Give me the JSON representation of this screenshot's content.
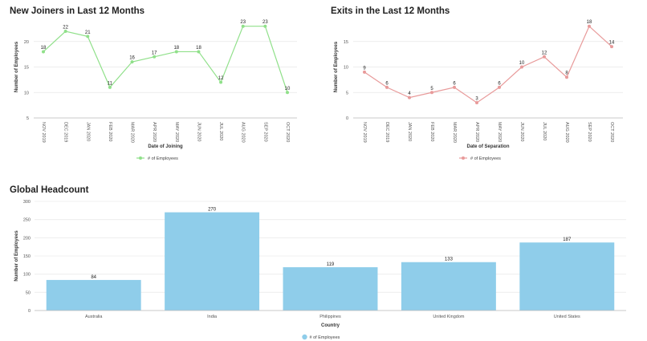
{
  "charts": {
    "joiners": {
      "title": "New Joiners in Last 12 Months",
      "color": "#90e08a",
      "chart_data": {
        "type": "line",
        "title": "New Joiners in Last 12 Months",
        "categories": [
          "NOV 2019",
          "DEC 2019",
          "JAN 2020",
          "FEB 2020",
          "MAR 2020",
          "APR 2020",
          "MAY 2020",
          "JUN 2020",
          "JUL 2020",
          "AUG 2020",
          "SEP 2020",
          "OCT 2020"
        ],
        "series": [
          {
            "name": "# of Employees",
            "values": [
              18,
              22,
              21,
              11,
              16,
              17,
              18,
              18,
              12,
              23,
              23,
              10
            ]
          }
        ],
        "xlabel": "Date of Joining",
        "ylabel": "Number of Employees",
        "ylim": [
          5,
          25
        ],
        "yticks": [
          5,
          10,
          15,
          20
        ],
        "grid": true,
        "legend": "bottom"
      }
    },
    "exits": {
      "title": "Exits in the Last 12 Months",
      "color": "#e89a9a",
      "chart_data": {
        "type": "line",
        "title": "Exits in the Last 12 Months",
        "categories": [
          "NOV 2019",
          "DEC 2019",
          "JAN 2020",
          "FEB 2020",
          "MAR 2020",
          "APR 2020",
          "MAY 2020",
          "JUN 2020",
          "JUL 2020",
          "AUG 2020",
          "SEP 2020",
          "OCT 2020"
        ],
        "series": [
          {
            "name": "# of Employees",
            "values": [
              9,
              6,
              4,
              5,
              6,
              3,
              6,
              10,
              12,
              8,
              18,
              14
            ]
          }
        ],
        "xlabel": "Date of Separation",
        "ylabel": "Number of Employees",
        "ylim": [
          0,
          20
        ],
        "yticks": [
          0,
          5,
          10,
          15
        ],
        "grid": true,
        "legend": "bottom"
      }
    },
    "headcount": {
      "title": "Global Headcount",
      "color": "#8fcdea",
      "chart_data": {
        "type": "bar",
        "title": "Global Headcount",
        "categories": [
          "Australia",
          "India",
          "Philippines",
          "United Kingdom",
          "United States"
        ],
        "series": [
          {
            "name": "# of Employees",
            "values": [
              84,
              270,
              119,
              133,
              187
            ]
          }
        ],
        "xlabel": "Country",
        "ylabel": "Number of Employees",
        "ylim": [
          0,
          300
        ],
        "yticks": [
          0,
          50,
          100,
          150,
          200,
          250,
          300
        ],
        "grid": true,
        "legend": "bottom"
      }
    }
  }
}
